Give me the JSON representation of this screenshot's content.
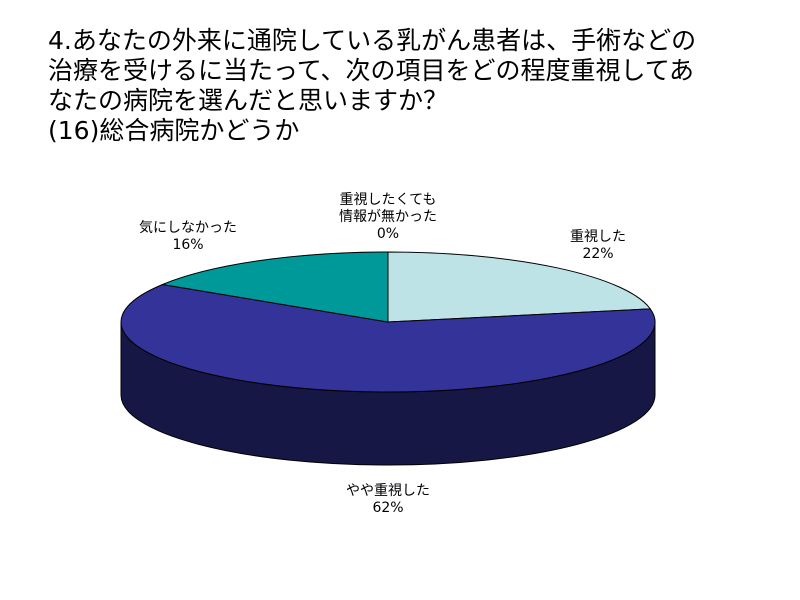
{
  "title_lines": [
    "4.あなたの外来に通院している乳がん患者は、手術などの",
    "治療を受けるに当たって、次の項目をどの程度重視してあ",
    "なたの病院を選んだと思いますか？",
    "(16)総合病院かどうか"
  ],
  "chart_data": {
    "type": "pie",
    "title": "4.あなたの外来に通院している乳がん患者は、手術などの治療を受けるに当たって、次の項目をどの程度重視してあなたの病院を選んだと思いますか？(16)総合病院かどうか",
    "style": "3d",
    "slices": [
      {
        "label": "重視した",
        "value": 22,
        "value_label": "22%",
        "color": "#bde3e6"
      },
      {
        "label": "やや重視した",
        "value": 62,
        "value_label": "62%",
        "color": "#333399"
      },
      {
        "label": "気にしなかった",
        "value": 16,
        "value_label": "16%",
        "color": "#009999"
      },
      {
        "label": "重視したくても情報が無かった",
        "value": 0,
        "value_label": "0%",
        "color": "#ffffff"
      }
    ]
  }
}
